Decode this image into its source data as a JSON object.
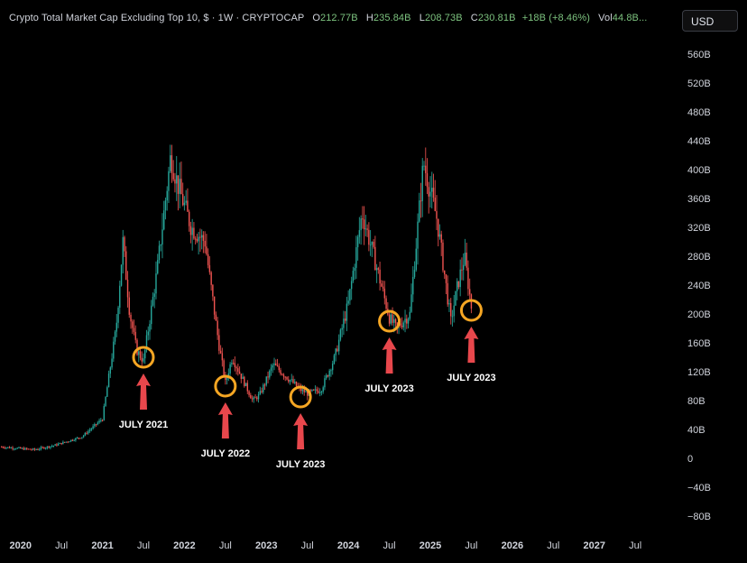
{
  "header": {
    "title": "Crypto Total Market Cap Excluding Top 10, $ · 1W · CRYPTOCAP",
    "open_label": "O",
    "open": "212.77B",
    "high_label": "H",
    "high": "235.84B",
    "low_label": "L",
    "low": "208.73B",
    "close_label": "C",
    "close": "230.81B",
    "change": "+18B (+8.46%)",
    "vol_label": "Vol",
    "vol": "44.8B..."
  },
  "currency_button": "USD",
  "colors": {
    "up": "#26a69a",
    "down": "#ef5350",
    "circle": "#f5a623",
    "arrow": "#e8474c",
    "background": "#000000"
  },
  "chart_data": {
    "type": "line",
    "title": "Crypto Total Market Cap Excluding Top 10, $ · 1W · CRYPTOCAP",
    "xlabel": "",
    "ylabel": "",
    "ylim": [
      -80,
      560
    ],
    "y_ticks": [
      "560B",
      "520B",
      "480B",
      "440B",
      "400B",
      "360B",
      "320B",
      "280B",
      "240B",
      "200B",
      "160B",
      "120B",
      "80B",
      "40B",
      "0",
      "−40B",
      "−80B"
    ],
    "x_ticks": [
      "2020",
      "Jul",
      "2021",
      "Jul",
      "2022",
      "Jul",
      "2023",
      "Jul",
      "2024",
      "Jul",
      "2025",
      "Jul",
      "2026",
      "Jul",
      "2027",
      "Jul"
    ],
    "series": [
      {
        "x": [
          "2019-10",
          "2020-03",
          "2020-06",
          "2020-10",
          "2021-01",
          "2021-03",
          "2021-04",
          "2021-05",
          "2021-06",
          "2021-07",
          "2021-09",
          "2021-11",
          "2021-12",
          "2022-02",
          "2022-04",
          "2022-06",
          "2022-07",
          "2022-08",
          "2022-11",
          "2022-12",
          "2023-02",
          "2023-06",
          "2023-07",
          "2023-09",
          "2023-11",
          "2024-01",
          "2024-03",
          "2024-05",
          "2024-07",
          "2024-08",
          "2024-10",
          "2024-12",
          "2025-02",
          "2025-04",
          "2025-05",
          "2025-06",
          "2025-07"
        ],
        "values": [
          16,
          12,
          18,
          30,
          55,
          180,
          300,
          200,
          150,
          135,
          260,
          420,
          380,
          320,
          300,
          160,
          105,
          140,
          80,
          88,
          130,
          95,
          90,
          95,
          140,
          215,
          340,
          270,
          195,
          180,
          200,
          410,
          330,
          190,
          240,
          280,
          210
        ]
      }
    ],
    "annotations": [
      {
        "label": "JULY 2021",
        "x": "2021-07",
        "y": 140
      },
      {
        "label": "JULY 2022",
        "x": "2022-07",
        "y": 100
      },
      {
        "label": "JULY 2023",
        "x": "2023-06",
        "y": 85
      },
      {
        "label": "JULY 2023",
        "x": "2024-07",
        "y": 190
      },
      {
        "label": "JULY 2023",
        "x": "2025-07",
        "y": 205
      }
    ]
  }
}
